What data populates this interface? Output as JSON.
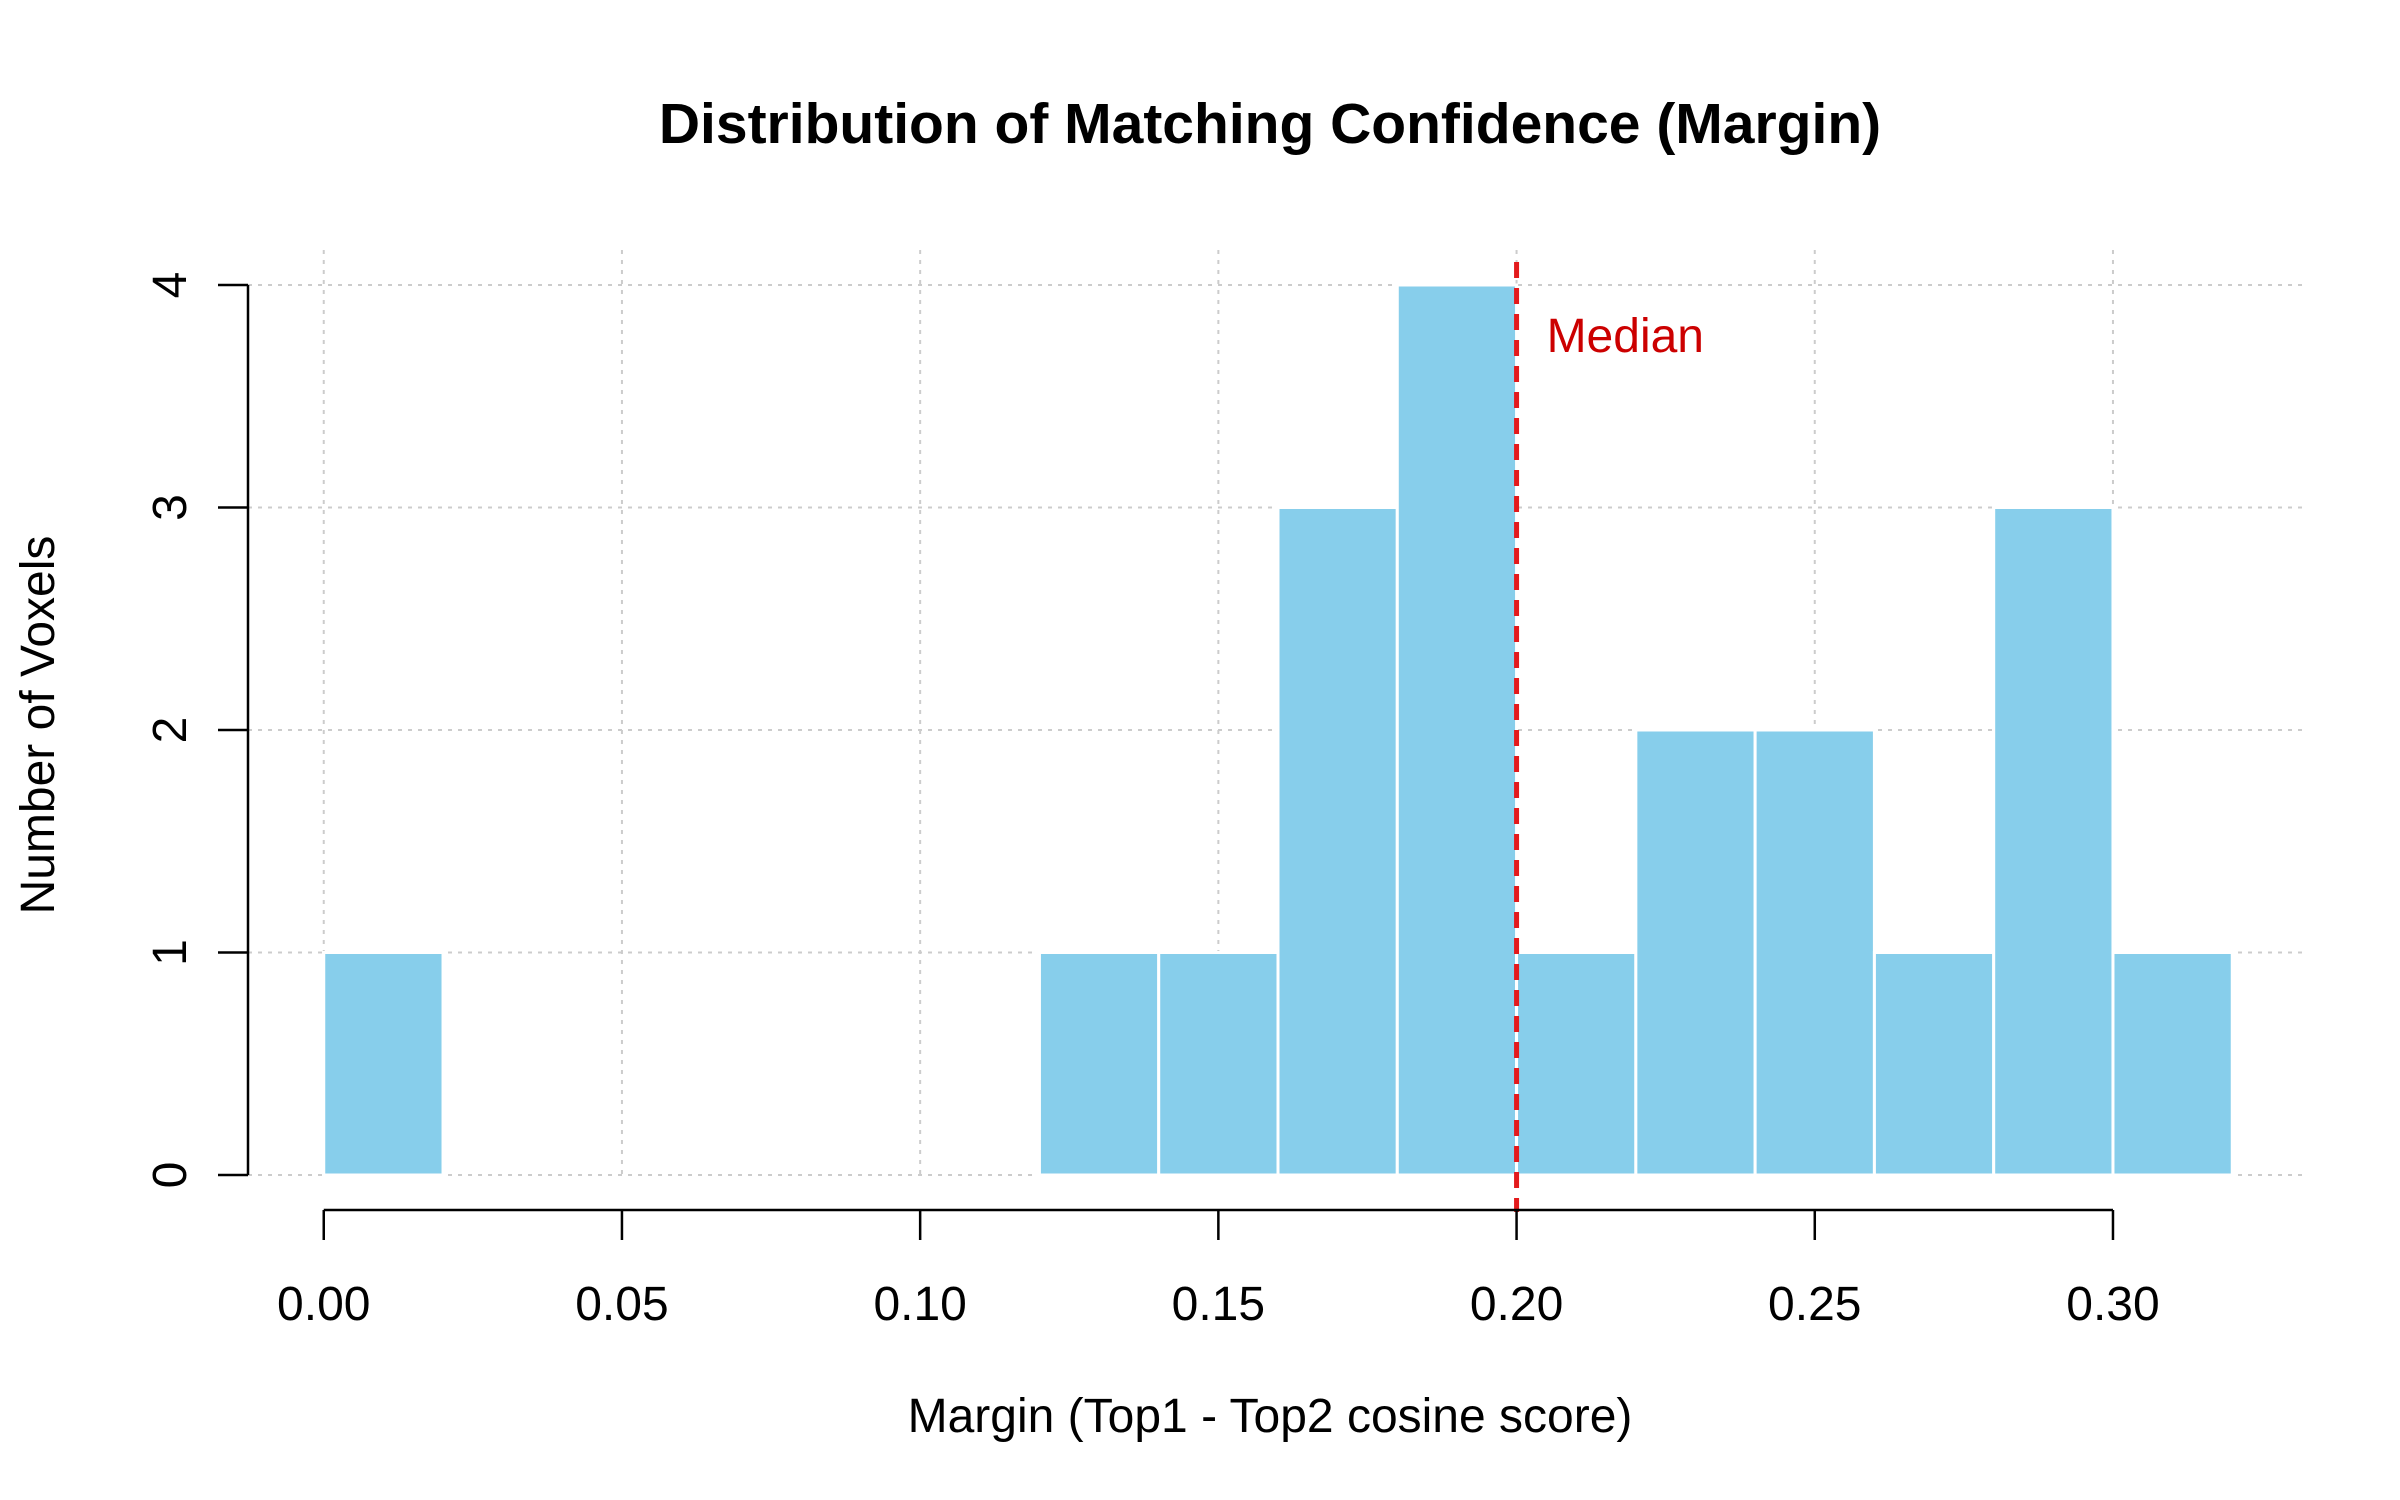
{
  "chart_data": {
    "type": "bar",
    "subtype": "histogram",
    "title": "Distribution of Matching Confidence (Margin)",
    "xlabel": "Margin (Top1 - Top2 cosine score)",
    "ylabel": "Number of Voxels",
    "bin_width": 0.02,
    "bins": [
      {
        "start": 0.0,
        "end": 0.02,
        "count": 1
      },
      {
        "start": 0.02,
        "end": 0.04,
        "count": 0
      },
      {
        "start": 0.04,
        "end": 0.06,
        "count": 0
      },
      {
        "start": 0.06,
        "end": 0.08,
        "count": 0
      },
      {
        "start": 0.08,
        "end": 0.1,
        "count": 0
      },
      {
        "start": 0.1,
        "end": 0.12,
        "count": 0
      },
      {
        "start": 0.12,
        "end": 0.14,
        "count": 1
      },
      {
        "start": 0.14,
        "end": 0.16,
        "count": 1
      },
      {
        "start": 0.16,
        "end": 0.18,
        "count": 3
      },
      {
        "start": 0.18,
        "end": 0.2,
        "count": 4
      },
      {
        "start": 0.2,
        "end": 0.22,
        "count": 1
      },
      {
        "start": 0.22,
        "end": 0.24,
        "count": 2
      },
      {
        "start": 0.24,
        "end": 0.26,
        "count": 2
      },
      {
        "start": 0.26,
        "end": 0.28,
        "count": 1
      },
      {
        "start": 0.28,
        "end": 0.3,
        "count": 3
      },
      {
        "start": 0.3,
        "end": 0.32,
        "count": 1
      }
    ],
    "xlim": [
      -0.0127,
      0.3327
    ],
    "ylim": [
      0,
      4
    ],
    "x_ticks": [
      0.0,
      0.05,
      0.1,
      0.15,
      0.2,
      0.25,
      0.3
    ],
    "x_tick_labels": [
      "0.00",
      "0.05",
      "0.10",
      "0.15",
      "0.20",
      "0.25",
      "0.30"
    ],
    "y_ticks": [
      0,
      1,
      2,
      3,
      4
    ],
    "y_tick_labels": [
      "0",
      "1",
      "2",
      "3",
      "4"
    ],
    "grid": true,
    "bar_color": "#87CEEB",
    "bar_border_color": "#FFFFFF",
    "grid_color": "#CCCCCC",
    "median": {
      "value": 0.2,
      "label": "Median",
      "color": "#E31A1C",
      "label_color": "#CC0000",
      "line_style": "dashed"
    }
  }
}
